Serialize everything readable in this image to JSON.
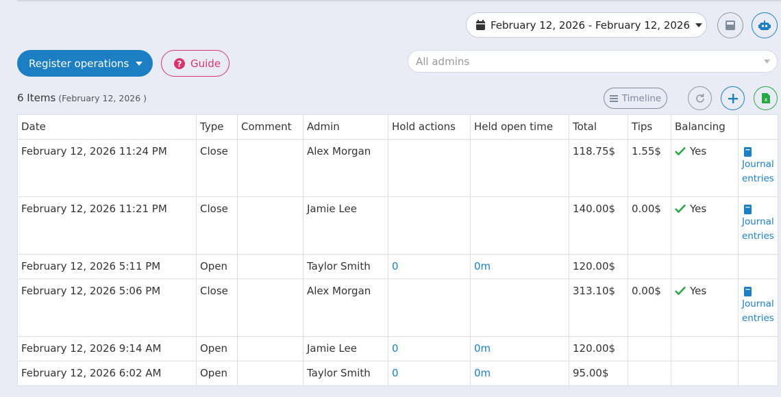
{
  "toolbar": {
    "date_range": "February 12, 2026 - February 12, 2026",
    "register_button": "Register operations",
    "guide_button": "Guide",
    "admin_filter_placeholder": "All admins",
    "timeline_button": "Timeline"
  },
  "summary": {
    "count": "6 Items",
    "date": "(February 12, 2026 )"
  },
  "table": {
    "columns": [
      "Date",
      "Type",
      "Comment",
      "Admin",
      "Hold actions",
      "Held open time",
      "Total",
      "Tips",
      "Balancing"
    ],
    "rows": [
      {
        "date": "February 12, 2026 11:24 PM",
        "type": "Close",
        "admin": "Alex Morgan",
        "total": "118.75$",
        "tips": "1.55$",
        "balancing": "Yes",
        "link": "Journal entries"
      },
      {
        "date": "February 12, 2026 11:21 PM",
        "type": "Close",
        "admin": "Jamie Lee",
        "total": "140.00$",
        "tips": "0.00$",
        "balancing": "Yes",
        "link": "Journal entries"
      },
      {
        "date": "February 12, 2026 5:11 PM",
        "type": "Open",
        "admin": "Taylor Smith",
        "hold_actions": 0,
        "held_open_time": "0m",
        "total": "120.00$"
      },
      {
        "date": "February 12, 2026 5:06 PM",
        "type": "Close",
        "admin": "Alex Morgan",
        "total": "313.10$",
        "tips": "0.00$",
        "balancing": "Yes",
        "link": "Journal entries"
      },
      {
        "date": "February 12, 2026 9:14 AM",
        "type": "Open",
        "admin": "Jamie Lee",
        "hold_actions": 0,
        "held_open_time": "0m",
        "total": "120.00$"
      },
      {
        "date": "February 12, 2026 6:02 AM",
        "type": "Open",
        "admin": "Taylor Smith",
        "hold_actions": 0,
        "held_open_time": "0m",
        "total": "95.00$"
      }
    ]
  }
}
